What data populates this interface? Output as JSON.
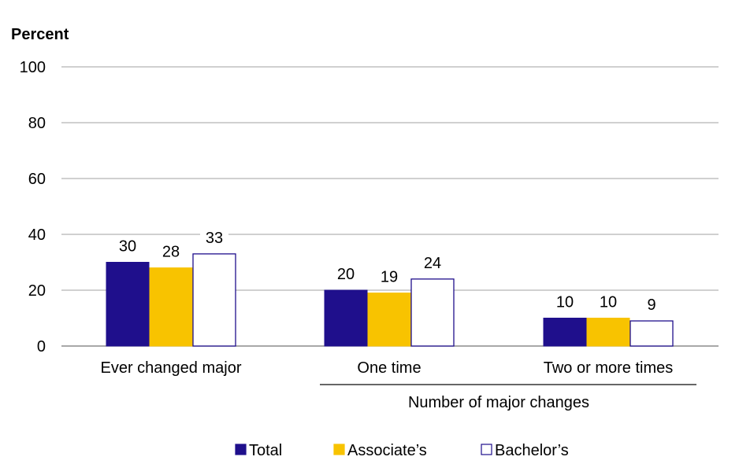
{
  "chart_data": {
    "type": "bar",
    "ylabel": "Percent",
    "xlabel": "",
    "ylim": [
      0,
      100
    ],
    "yticks": [
      0,
      20,
      40,
      60,
      80,
      100
    ],
    "categories": [
      "Ever changed major",
      "One time",
      "Two or more times"
    ],
    "group_label": "Number of major changes",
    "group_categories": [
      "One time",
      "Two or more times"
    ],
    "series": [
      {
        "name": "Total",
        "values": [
          30,
          20,
          10
        ],
        "color": "#1f0f8c"
      },
      {
        "name": "Associate’s",
        "values": [
          28,
          19,
          10
        ],
        "color": "#f8c300"
      },
      {
        "name": "Bachelor’s",
        "values": [
          33,
          24,
          9
        ],
        "color": "#ffffff"
      }
    ],
    "data_labels": [
      [
        "30",
        "20",
        "10"
      ],
      [
        "28",
        "19",
        "10"
      ],
      [
        "33",
        "24",
        "9"
      ]
    ],
    "grid": true,
    "legend_position": "bottom"
  },
  "colors": {
    "grid": "#b3b3b3",
    "outline": "#1f0f8c",
    "axis": "#7f7f7f"
  }
}
